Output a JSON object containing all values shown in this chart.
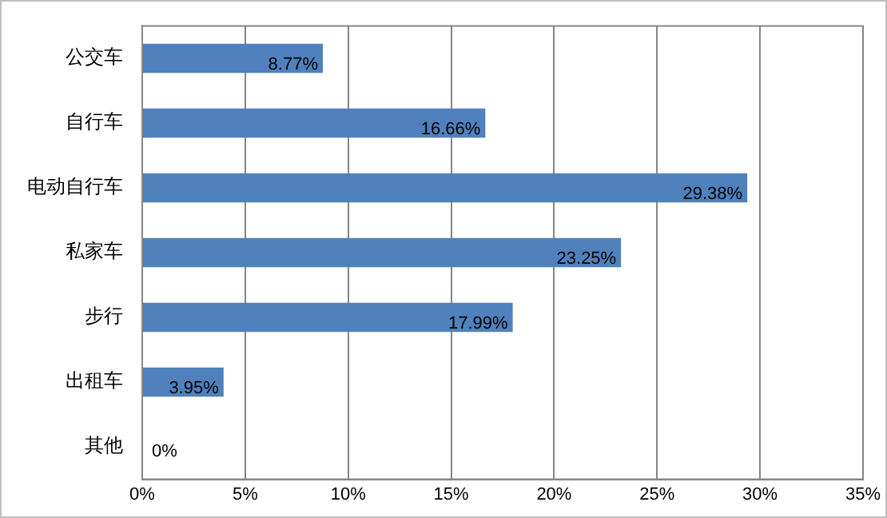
{
  "chart_data": {
    "type": "bar",
    "orientation": "horizontal",
    "categories": [
      "公交车",
      "自行车",
      "电动自行车",
      "私家车",
      "步行",
      "出租车",
      "其他"
    ],
    "values": [
      8.77,
      16.66,
      29.38,
      23.25,
      17.99,
      3.95,
      0
    ],
    "value_labels": [
      "8.77%",
      "16.66%",
      "29.38%",
      "23.25%",
      "17.99%",
      "3.95%",
      "0%"
    ],
    "color": "#4f81bd",
    "xlim": [
      0,
      35
    ],
    "xticks": [
      {
        "value": 0,
        "label": "0%"
      },
      {
        "value": 5,
        "label": "5%"
      },
      {
        "value": 10,
        "label": "10%"
      },
      {
        "value": 15,
        "label": "15%"
      },
      {
        "value": 20,
        "label": "20%"
      },
      {
        "value": 25,
        "label": "25%"
      },
      {
        "value": 30,
        "label": "30%"
      },
      {
        "value": 35,
        "label": "35%"
      }
    ],
    "grid": "x",
    "legend": false
  }
}
